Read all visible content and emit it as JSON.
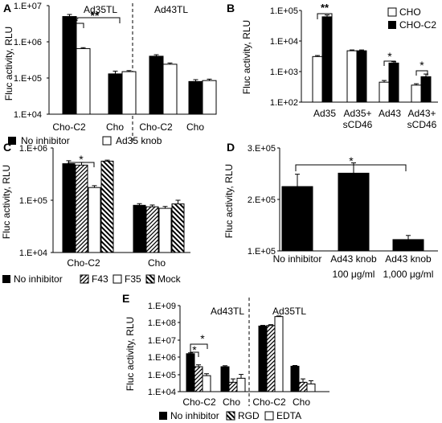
{
  "chart_data": [
    {
      "panel": "A",
      "type": "bar",
      "scale": "log",
      "ylabel": "Fluc activity, RLU",
      "ylim": [
        10000,
        10000000
      ],
      "yticks": [
        "1.E+04",
        "1.E+05",
        "1.E+06",
        "1.E+07"
      ],
      "groups": [
        "Ad35TL",
        "Ad43TL"
      ],
      "categories": [
        "Cho-C2",
        "Cho",
        "Cho-C2",
        "Cho"
      ],
      "series": [
        {
          "name": "No inhibitor",
          "fill": "solid",
          "values": [
            5000000,
            130000,
            400000,
            80000
          ],
          "errors": [
            700000,
            25000,
            40000,
            10000
          ]
        },
        {
          "name": "Ad35 knob",
          "fill": "white",
          "values": [
            650000,
            150000,
            240000,
            85000
          ],
          "errors": [
            40000,
            10000,
            20000,
            8000
          ]
        }
      ],
      "annotations": [
        "*",
        "**"
      ]
    },
    {
      "panel": "B",
      "type": "bar",
      "scale": "log",
      "ylabel": "Fluc activity, RLU",
      "ylim": [
        100,
        100000
      ],
      "yticks": [
        "1.E+02",
        "1.E+03",
        "1.E+04",
        "1.E+05"
      ],
      "categories": [
        "Ad35",
        "Ad35+ sCD46",
        "Ad43",
        "Ad43+ sCD46"
      ],
      "series": [
        {
          "name": "CHO",
          "fill": "white",
          "values": [
            3100,
            4800,
            450,
            360
          ],
          "errors": [
            250,
            300,
            60,
            40
          ]
        },
        {
          "name": "CHO-C2",
          "fill": "solid",
          "values": [
            62000,
            4800,
            1900,
            680
          ],
          "errors": [
            9000,
            300,
            200,
            150
          ]
        }
      ],
      "annotations": [
        "**",
        "*",
        "*"
      ]
    },
    {
      "panel": "C",
      "type": "bar",
      "scale": "log",
      "ylabel": "Fluc activity, RLU",
      "ylim": [
        10000,
        1000000
      ],
      "yticks": [
        "1.E+04",
        "1.E+05",
        "1.E+06"
      ],
      "categories": [
        "Cho-C2",
        "Cho"
      ],
      "series": [
        {
          "name": "No inhibitor",
          "fill": "solid",
          "values": [
            500000,
            80000
          ],
          "errors": [
            70000,
            6000
          ]
        },
        {
          "name": "F43",
          "fill": "hatch",
          "values": [
            470000,
            75000
          ],
          "errors": [
            60000,
            6000
          ]
        },
        {
          "name": "F35",
          "fill": "white",
          "values": [
            175000,
            70000
          ],
          "errors": [
            15000,
            6000
          ]
        },
        {
          "name": "Mock",
          "fill": "hatch-back",
          "values": [
            560000,
            85000
          ],
          "errors": [
            25000,
            15000
          ]
        }
      ],
      "annotations": [
        "*"
      ]
    },
    {
      "panel": "D",
      "type": "bar",
      "scale": "linear",
      "ylabel": "Fluc activity, RLU",
      "ylim": [
        100000,
        300000
      ],
      "yticks": [
        "1.E+05",
        "2.E+05",
        "3.E+05"
      ],
      "categories": [
        "No inhibitor",
        "Ad43 knob 100 μg/ml",
        "Ad43 knob 1,000 μg/ml"
      ],
      "series": [
        {
          "name": "",
          "fill": "solid",
          "values": [
            225000,
            251000,
            122000
          ],
          "errors": [
            24000,
            20000,
            8000
          ]
        }
      ],
      "annotations": [
        "*"
      ]
    },
    {
      "panel": "E",
      "type": "bar",
      "scale": "log",
      "ylabel": "Fluc activity, RLU",
      "ylim": [
        10000,
        1000000000
      ],
      "yticks": [
        "1.E+04",
        "1.E+05",
        "1.E+06",
        "1.E+07",
        "1.E+08",
        "1.E+09"
      ],
      "groups": [
        "Ad43TL",
        "Ad35TL"
      ],
      "categories": [
        "Cho-C2",
        "Cho",
        "Cho-C2",
        "Cho"
      ],
      "series": [
        {
          "name": "No inhibitor",
          "fill": "solid",
          "values": [
            1600000,
            280000,
            65000000,
            300000
          ],
          "errors": [
            200000,
            40000,
            6000000,
            30000
          ]
        },
        {
          "name": "RGD",
          "fill": "hatch",
          "values": [
            280000,
            35000,
            70000000,
            35000
          ],
          "errors": [
            80000,
            20000,
            8000000,
            20000
          ]
        },
        {
          "name": "EDTA",
          "fill": "white",
          "values": [
            85000,
            60000,
            230000000,
            28000
          ],
          "errors": [
            25000,
            40000,
            20000000,
            15000
          ]
        }
      ],
      "annotations": [
        "*",
        "*"
      ]
    }
  ],
  "labels": {
    "A": {
      "panel": "A",
      "ylabel": "Fluc activity, RLU",
      "group1": "Ad35TL",
      "group2": "Ad43TL",
      "ticks": [
        "1.E+04",
        "1.E+05",
        "1.E+06",
        "1.E+07"
      ],
      "cats": [
        "Cho-C2",
        "Cho",
        "Cho-C2",
        "Cho"
      ],
      "sig1": "*",
      "sig2": "**",
      "legend1": "No inhibitor",
      "legend2": "Ad35 knob"
    },
    "B": {
      "panel": "B",
      "ylabel": "Fluc activity, RLU",
      "ticks": [
        "1.E+02",
        "1.E+03",
        "1.E+04",
        "1.E+05"
      ],
      "cat1": "Ad35",
      "cat2a": "Ad35+",
      "cat2b": "sCD46",
      "cat3": "Ad43",
      "cat4a": "Ad43+",
      "cat4b": "sCD46",
      "sig1": "**",
      "sig2": "*",
      "sig3": "*",
      "legend1": "CHO",
      "legend2": "CHO-C2"
    },
    "C": {
      "panel": "C",
      "ylabel": "Fluc activity, RLU",
      "ticks": [
        "1.E+04",
        "1.E+05",
        "1.E+06"
      ],
      "cats": [
        "Cho-C2",
        "Cho"
      ],
      "sig1": "*",
      "legend1": "No inhibitor",
      "legend2": "F43",
      "legend3": "F35",
      "legend4": "Mock"
    },
    "D": {
      "panel": "D",
      "ylabel": "Fluc activity, RLU",
      "ticks": [
        "1.E+05",
        "2.E+05",
        "3.E+05"
      ],
      "cat1": "No inhibitor",
      "cat2a": "Ad43 knob",
      "cat2b": "100 μg/ml",
      "cat3a": "Ad43 knob",
      "cat3b": "1,000 μg/ml",
      "sig1": "*"
    },
    "E": {
      "panel": "E",
      "ylabel": "Fluc activity, RLU",
      "group1": "Ad43TL",
      "group2": "Ad35TL",
      "ticks": [
        "1.E+04",
        "1.E+05",
        "1.E+06",
        "1.E+07",
        "1.E+08",
        "1.E+09"
      ],
      "cats": [
        "Cho-C2",
        "Cho",
        "Cho-C2",
        "Cho"
      ],
      "sig1": "*",
      "sig2": "*",
      "legend1": "No inhibitor",
      "legend2": "RGD",
      "legend3": "EDTA"
    }
  }
}
